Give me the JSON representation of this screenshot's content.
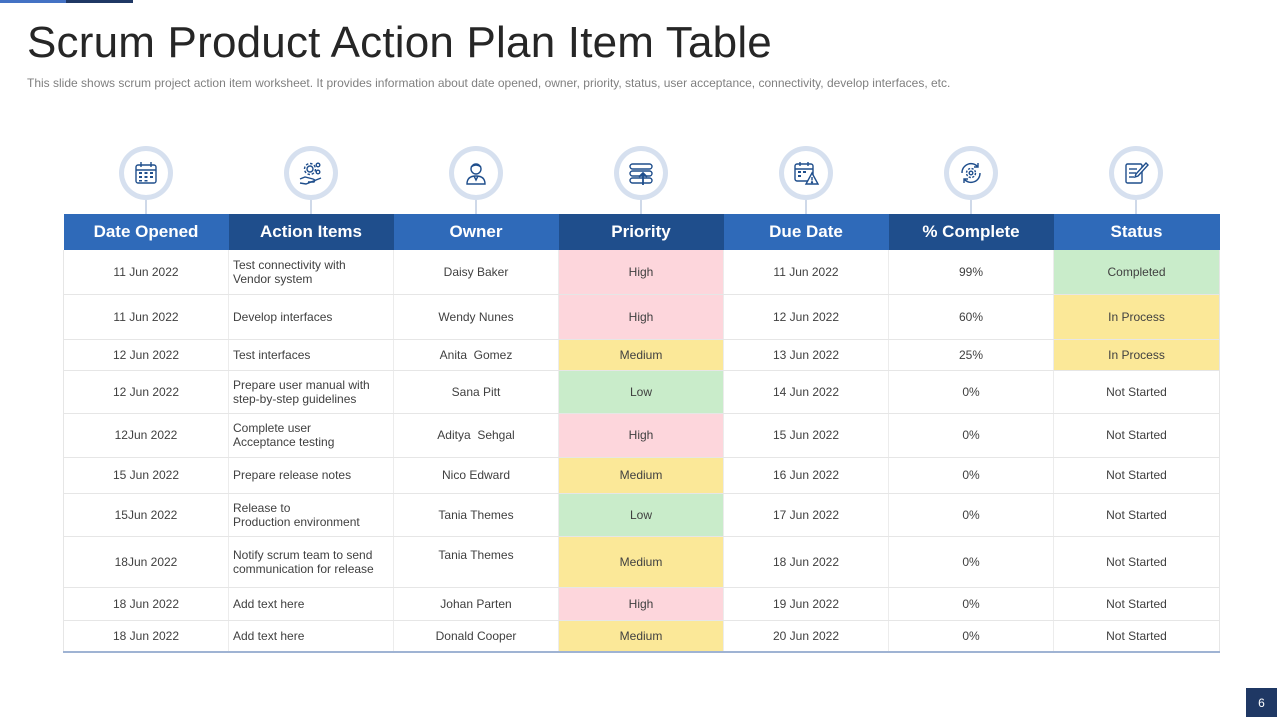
{
  "title": "Scrum Product Action Plan Item Table",
  "subtitle": "This slide shows scrum project action item worksheet. It provides information about date opened, owner, priority, status, user acceptance, connectivity,  develop interfaces, etc.",
  "icons": [
    "calendar-icon",
    "gear-hand-icon",
    "user-icon",
    "stack-priority-icon",
    "calendar-warning-icon",
    "refresh-gear-icon",
    "notepad-pen-icon"
  ],
  "headers": [
    "Date Opened",
    "Action Items",
    "Owner",
    "Priority",
    "Due Date",
    "% Complete",
    "Status"
  ],
  "rows": [
    {
      "date_opened": "11 Jun 2022",
      "action": "Test connectivity with\nVendor system",
      "owner": "Daisy Baker",
      "priority": "High",
      "due_date": "11 Jun 2022",
      "complete": "99%",
      "status": "Completed"
    },
    {
      "date_opened": "11 Jun 2022",
      "action": "Develop interfaces",
      "owner": "Wendy Nunes",
      "priority": "High",
      "due_date": "12 Jun 2022",
      "complete": "60%",
      "status": "In Process"
    },
    {
      "date_opened": "12 Jun 2022",
      "action": "Test interfaces",
      "owner": "Anita  Gomez",
      "priority": "Medium",
      "due_date": "13 Jun 2022",
      "complete": "25%",
      "status": "In Process"
    },
    {
      "date_opened": "12 Jun 2022",
      "action": "Prepare user manual with\nstep-by-step guidelines",
      "owner": "Sana Pitt",
      "priority": "Low",
      "due_date": "14 Jun 2022",
      "complete": "0%",
      "status": "Not Started"
    },
    {
      "date_opened": "12Jun 2022",
      "action": "Complete user\nAcceptance testing",
      "owner": "Aditya  Sehgal",
      "priority": "High",
      "due_date": "15 Jun 2022",
      "complete": "0%",
      "status": "Not Started"
    },
    {
      "date_opened": "15 Jun 2022",
      "action": "Prepare release notes",
      "owner": "Nico Edward",
      "priority": "Medium",
      "due_date": "16 Jun 2022",
      "complete": "0%",
      "status": "Not Started"
    },
    {
      "date_opened": "15Jun 2022",
      "action": "Release to\nProduction environment",
      "owner": "Tania Themes",
      "priority": "Low",
      "due_date": "17 Jun 2022",
      "complete": "0%",
      "status": "Not Started"
    },
    {
      "date_opened": "18Jun 2022",
      "action": "Notify scrum team to send\ncommunication for release",
      "owner": "Tania Themes",
      "priority": "Medium",
      "due_date": "18 Jun 2022",
      "complete": "0%",
      "status": "Not Started"
    },
    {
      "date_opened": "18 Jun 2022",
      "action": "Add text here",
      "owner": "Johan Parten",
      "priority": "High",
      "due_date": "19 Jun 2022",
      "complete": "0%",
      "status": "Not Started"
    },
    {
      "date_opened": "18 Jun 2022",
      "action": "Add text here",
      "owner": "Donald Cooper",
      "priority": "Medium",
      "due_date": "20 Jun 2022",
      "complete": "0%",
      "status": "Not Started"
    }
  ],
  "colors": {
    "header_light": "#2f6ab9",
    "header_dark": "#1f4e8c",
    "priority_high": "#fdd6dc",
    "priority_medium": "#fbe898",
    "priority_low": "#c9ecca",
    "status_completed": "#c9ecca",
    "status_in_process": "#fbe898",
    "page_badge": "#1f3864"
  },
  "page_number": "6"
}
